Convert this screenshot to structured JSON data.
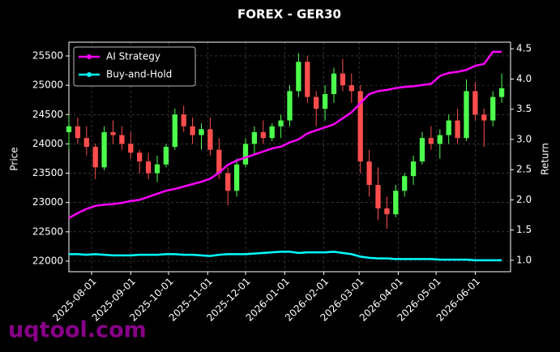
{
  "chart_data": {
    "type": "candlestick",
    "title": "FOREX - GER30",
    "ylabel": "Price",
    "y2label": "Return",
    "x": [
      "2025-07-14",
      "2025-07-21",
      "2025-07-28",
      "2025-08-04",
      "2025-08-11",
      "2025-08-18",
      "2025-08-25",
      "2025-09-01",
      "2025-09-08",
      "2025-09-15",
      "2025-09-22",
      "2025-09-29",
      "2025-10-06",
      "2025-10-13",
      "2025-10-20",
      "2025-10-27",
      "2025-11-03",
      "2025-11-10",
      "2025-11-17",
      "2025-11-24",
      "2025-12-01",
      "2025-12-08",
      "2025-12-15",
      "2025-12-22",
      "2025-12-29",
      "2026-01-05",
      "2026-01-12",
      "2026-01-19",
      "2026-01-26",
      "2026-02-02",
      "2026-02-09",
      "2026-02-16",
      "2026-02-23",
      "2026-03-02",
      "2026-03-09",
      "2026-03-16",
      "2026-03-23",
      "2026-03-30",
      "2026-04-06",
      "2026-04-13",
      "2026-04-20",
      "2026-04-27",
      "2026-05-04",
      "2026-05-11",
      "2026-05-18",
      "2026-05-25",
      "2026-06-01",
      "2026-06-08",
      "2026-06-15",
      "2026-06-22"
    ],
    "open": [
      24200,
      24300,
      24100,
      23950,
      23600,
      24200,
      24150,
      24000,
      23850,
      23700,
      23500,
      23650,
      23950,
      24500,
      24300,
      24150,
      24250,
      23900,
      23500,
      23200,
      23650,
      24000,
      24200,
      24100,
      24300,
      24400,
      24900,
      25400,
      24800,
      24600,
      24850,
      25200,
      25000,
      24900,
      23700,
      23300,
      22900,
      22800,
      23200,
      23450,
      23700,
      24100,
      24000,
      24150,
      24400,
      24100,
      24900,
      24500,
      24400,
      24800
    ],
    "high": [
      24500,
      24450,
      24300,
      24000,
      24300,
      24400,
      24300,
      24200,
      23900,
      23850,
      23800,
      24000,
      24600,
      24650,
      24450,
      24350,
      24450,
      24100,
      23600,
      23750,
      24100,
      24300,
      24400,
      24350,
      24500,
      25000,
      25550,
      25500,
      24900,
      25000,
      25300,
      25450,
      25200,
      25000,
      23900,
      23600,
      23100,
      23300,
      23500,
      23800,
      24200,
      24300,
      24250,
      24500,
      24600,
      25100,
      25050,
      24600,
      24900,
      25200
    ],
    "low": [
      23900,
      24000,
      23800,
      23400,
      23550,
      24000,
      23900,
      23750,
      23500,
      23400,
      23350,
      23600,
      23900,
      24200,
      24000,
      23900,
      23800,
      23400,
      22950,
      23100,
      23600,
      23800,
      24000,
      24050,
      24100,
      24300,
      24800,
      24700,
      24300,
      24400,
      24700,
      24900,
      24700,
      23500,
      23100,
      22700,
      22550,
      22750,
      23100,
      23300,
      23650,
      23900,
      23750,
      24000,
      24000,
      24050,
      24400,
      23950,
      24300,
      24700
    ],
    "close": [
      24300,
      24100,
      23950,
      23600,
      24200,
      24150,
      24000,
      23850,
      23700,
      23500,
      23650,
      23950,
      24500,
      24300,
      24150,
      24250,
      23900,
      23500,
      23200,
      23650,
      24000,
      24200,
      24100,
      24300,
      24400,
      24900,
      25400,
      24800,
      24600,
      24850,
      25200,
      25000,
      24900,
      23700,
      23300,
      22900,
      22800,
      23200,
      23450,
      23700,
      24100,
      24000,
      24150,
      24400,
      24100,
      24900,
      24500,
      24400,
      24800,
      24950
    ],
    "up_color": "#4dff4d",
    "down_color": "#ff4d4d",
    "series": [
      {
        "name": "AI Strategy",
        "color": "#ff00ff",
        "axis": "y2",
        "values": [
          1.7,
          1.78,
          1.85,
          1.9,
          1.92,
          1.93,
          1.95,
          1.98,
          2.0,
          2.05,
          2.1,
          2.15,
          2.18,
          2.22,
          2.26,
          2.3,
          2.35,
          2.45,
          2.58,
          2.65,
          2.7,
          2.75,
          2.8,
          2.85,
          2.88,
          2.95,
          3.0,
          3.1,
          3.15,
          3.2,
          3.25,
          3.35,
          3.45,
          3.6,
          3.75,
          3.8,
          3.82,
          3.85,
          3.87,
          3.88,
          3.9,
          3.92,
          4.05,
          4.1,
          4.12,
          4.15,
          4.22,
          4.25,
          4.45,
          4.45
        ]
      },
      {
        "name": "Buy-and-Hold",
        "color": "#00ffff",
        "axis": "y2",
        "values": [
          1.1,
          1.1,
          1.09,
          1.1,
          1.09,
          1.08,
          1.08,
          1.08,
          1.09,
          1.09,
          1.09,
          1.1,
          1.1,
          1.09,
          1.09,
          1.08,
          1.07,
          1.09,
          1.1,
          1.1,
          1.1,
          1.11,
          1.12,
          1.13,
          1.14,
          1.14,
          1.12,
          1.13,
          1.13,
          1.13,
          1.14,
          1.12,
          1.1,
          1.06,
          1.04,
          1.03,
          1.03,
          1.02,
          1.02,
          1.02,
          1.02,
          1.02,
          1.01,
          1.01,
          1.01,
          1.01,
          1.0,
          1.0,
          1.0,
          1.0
        ]
      }
    ],
    "xlim": [
      "2025-07-14",
      "2026-06-29"
    ],
    "xticks": [
      "2025-08-01",
      "2025-09-01",
      "2025-10-01",
      "2025-11-01",
      "2025-12-01",
      "2026-01-01",
      "2026-02-01",
      "2026-03-01",
      "2026-04-01",
      "2026-05-01",
      "2026-06-01"
    ],
    "ylim": [
      21820,
      25735
    ],
    "yticks": [
      22000,
      22500,
      23000,
      23500,
      24000,
      24500,
      25000,
      25500
    ],
    "y2lim": [
      0.81,
      4.61
    ],
    "y2ticks": [
      {
        "value": 1,
        "label": "1.0"
      },
      1.5,
      {
        "value": 2,
        "label": "2.0"
      },
      2.5,
      {
        "value": 3,
        "label": "3.0"
      },
      3.5,
      {
        "value": 4,
        "label": "4.0"
      },
      4.5
    ],
    "grid": true,
    "legend": "upper left",
    "watermark": "uqtool.com"
  }
}
